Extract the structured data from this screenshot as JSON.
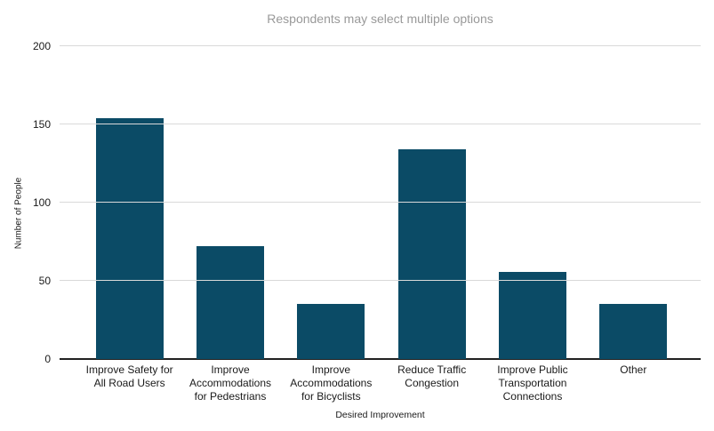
{
  "chart_data": {
    "type": "bar",
    "title": "Respondents may select multiple options",
    "xlabel": "Desired Improvement",
    "ylabel": "Number of People",
    "categories": [
      "Improve Safety for All Road Users",
      "Improve Accommodations for Pedestrians",
      "Improve Accommodations for Bicyclists",
      "Reduce Traffic Congestion",
      "Improve Public Transportation Connections",
      "Other"
    ],
    "values": [
      154,
      72,
      35,
      134,
      56,
      35
    ],
    "yticks": [
      0,
      50,
      100,
      150,
      200
    ],
    "ylim": [
      0,
      200
    ],
    "grid": true,
    "legend": "none",
    "bar_color": "#0b4b66",
    "title_color": "#999999",
    "gridline_color": "#d9d9d9",
    "axis_line_color": "#212121",
    "tick_label_color": "#1a1a1a"
  }
}
